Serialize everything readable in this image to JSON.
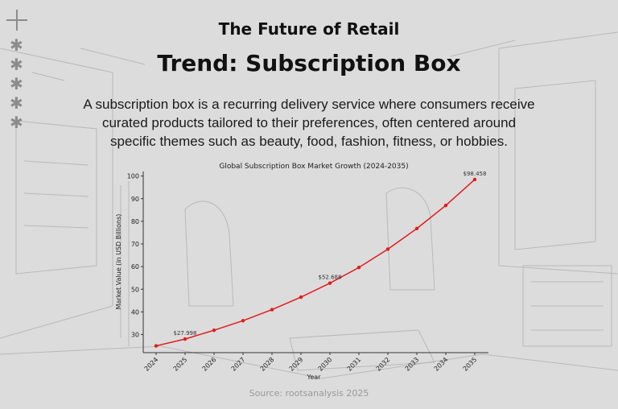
{
  "header": {
    "subtitle": "The Future of Retail",
    "title": "Trend: Subscription Box",
    "description": "A subscription box is a recurring delivery service where consumers receive curated products tailored to their preferences, often centered around specific themes such as beauty, food, fashion, fitness, or hobbies."
  },
  "footer": {
    "source": "Source: rootsanalysis 2025"
  },
  "colors": {
    "line": "#e31a1c",
    "background": "#dcdcdc"
  },
  "chart_data": {
    "type": "line",
    "title": "Global Subscription Box Market Growth (2024-2035)",
    "xlabel": "Year",
    "ylabel": "Market Value (in USD Billions)",
    "categories": [
      "2024",
      "2025",
      "2026",
      "2027",
      "2028",
      "2029",
      "2030",
      "2031",
      "2032",
      "2033",
      "2034",
      "2035"
    ],
    "values": [
      25.0,
      27.998,
      31.9,
      36.1,
      41.0,
      46.5,
      52.688,
      59.6,
      67.7,
      76.8,
      87.0,
      98.458
    ],
    "yticks": [
      30,
      40,
      50,
      60,
      70,
      80,
      90,
      100
    ],
    "ylim": [
      22,
      102
    ],
    "grid": false,
    "annotations": [
      {
        "index": 1,
        "text": "$27.998"
      },
      {
        "index": 6,
        "text": "$52.688"
      },
      {
        "index": 11,
        "text": "$98.458"
      }
    ]
  }
}
